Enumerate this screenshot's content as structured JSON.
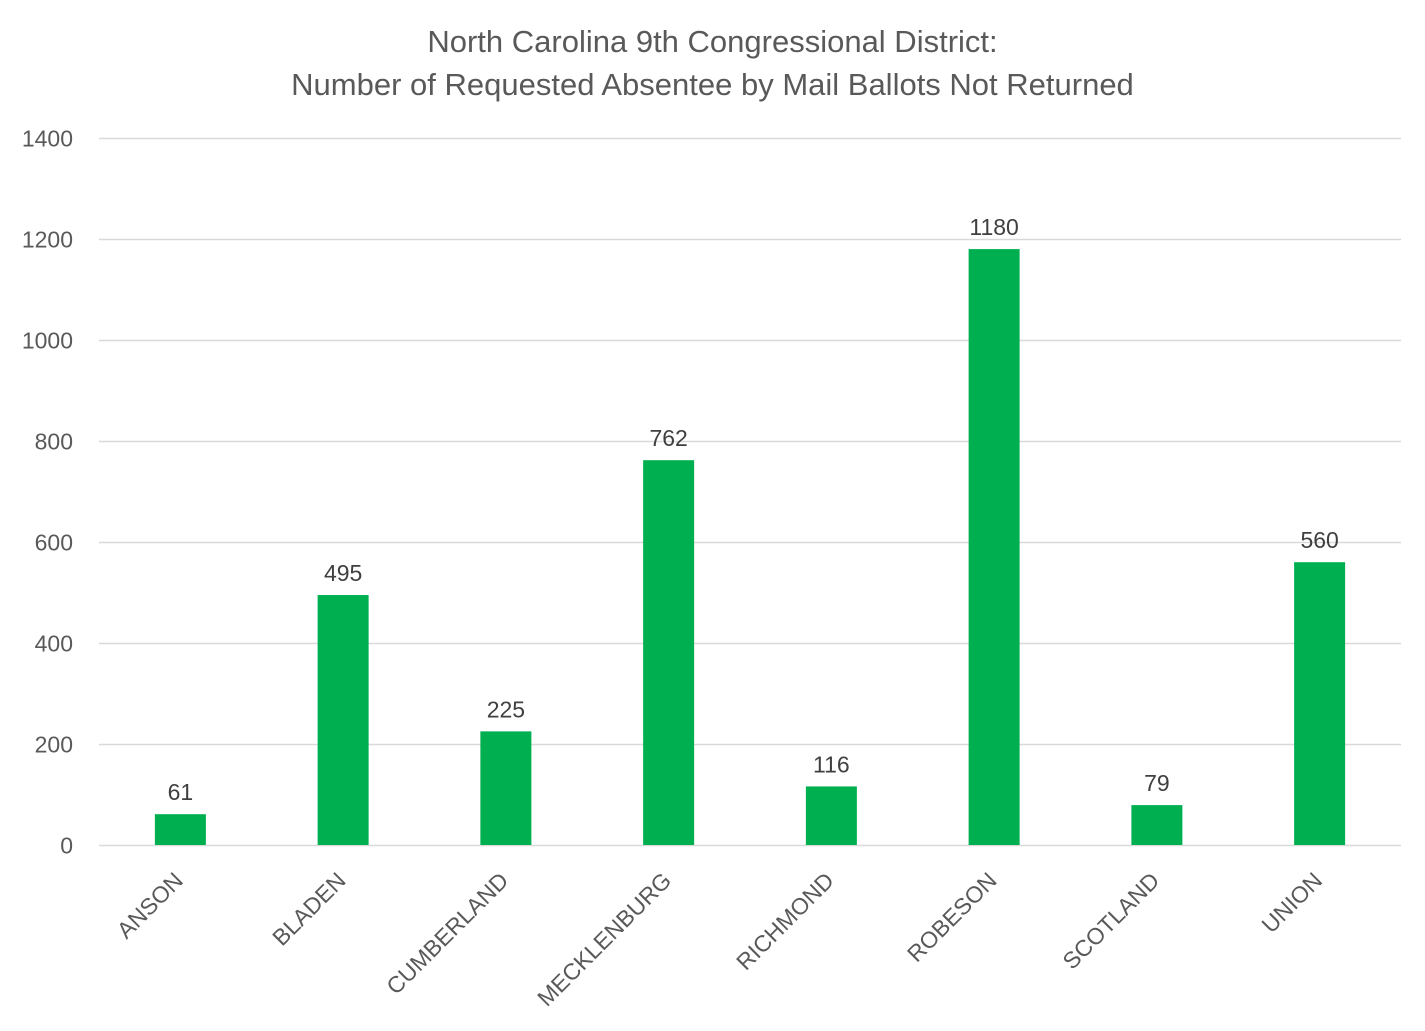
{
  "chart_data": {
    "type": "bar",
    "title_lines": [
      "North Carolina 9th Congressional District:",
      "Number of Requested Absentee by Mail Ballots Not Returned"
    ],
    "categories": [
      "ANSON",
      "BLADEN",
      "CUMBERLAND",
      "MECKLENBURG",
      "RICHMOND",
      "ROBESON",
      "SCOTLAND",
      "UNION"
    ],
    "values": [
      61,
      495,
      225,
      762,
      116,
      1180,
      79,
      560
    ],
    "y_ticks": [
      0,
      200,
      400,
      600,
      800,
      1000,
      1200,
      1400
    ],
    "ylim": [
      0,
      1400
    ],
    "xlabel": "",
    "ylabel": "",
    "grid": true,
    "legend": "none",
    "data_labels": true,
    "colors": {
      "bar": "#00B050",
      "grid": "#D9D9D9",
      "text": "#595959",
      "data_label": "#404040"
    }
  }
}
